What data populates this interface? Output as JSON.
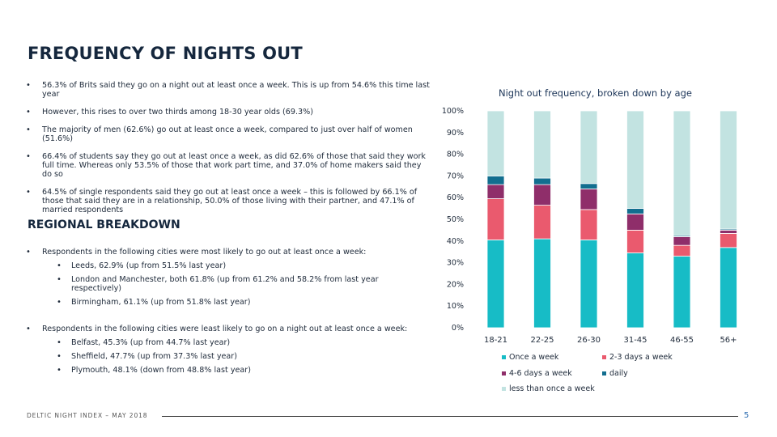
{
  "page": {
    "title": "FREQUENCY OF NIGHTS OUT",
    "bullets": [
      "56.3% of Brits said they go on a night out at least once a week. This is up from 54.6% this time last year",
      "However, this rises to over two thirds among 18-30 year olds (69.3%)",
      "The majority of men (62.6%) go out at least once a week, compared to just over half of women (51.6%)",
      "66.4% of students say they go out at least once a week, as did 62.6% of those that said they work full time. Whereas only 53.5% of those that work part time, and 37.0% of home makers said they do so",
      "64.5% of single respondents said they go out at least once a week – this is followed by 66.1% of those that said they are in a relationship, 50.0% of those living with their partner, and 47.1% of married respondents"
    ],
    "regional": {
      "heading": "REGIONAL BREAKDOWN",
      "most_intro": "Respondents in the following cities were most likely to go out at least once a week:",
      "most": [
        "Leeds, 62.9% (up from 51.5% last year)",
        "London and Manchester, both 61.8% (up from 61.2% and 58.2% from last year respectively)",
        "Birmingham, 61.1% (up from 51.8% last year)"
      ],
      "least_intro": "Respondents in the following cities were least likely to go on a night out at least once a week:",
      "least": [
        "Belfast, 45.3% (up from 44.7% last year)",
        "Sheffield, 47.7% (up from 37.3% last year)",
        "Plymouth, 48.1% (down from 48.8% last year)"
      ]
    },
    "footer": "DELTIC NIGHT INDEX – MAY 2018",
    "page_number": "5"
  },
  "chart_data": {
    "type": "bar",
    "stacked": true,
    "title": "Night out frequency, broken down by age",
    "categories": [
      "18-21",
      "22-25",
      "26-30",
      "31-45",
      "46-55",
      "56+"
    ],
    "y_ticks": [
      "0%",
      "10%",
      "20%",
      "30%",
      "40%",
      "50%",
      "60%",
      "70%",
      "80%",
      "90%",
      "100%"
    ],
    "ylim": [
      0,
      100
    ],
    "series": [
      {
        "name": "Once a week",
        "color": "#17bcc6",
        "values": [
          40.5,
          41,
          40.5,
          34.5,
          33,
          37
        ]
      },
      {
        "name": "2-3 days a week",
        "color": "#ea5a6e",
        "values": [
          19,
          15.5,
          14,
          10.5,
          5,
          6.5
        ]
      },
      {
        "name": "4-6 days a week",
        "color": "#8f2e6a",
        "values": [
          6.5,
          9.5,
          9.5,
          7.5,
          4,
          1.5
        ]
      },
      {
        "name": "daily",
        "color": "#126e8f",
        "values": [
          4,
          3,
          2.5,
          2.5,
          0.5,
          0.5
        ]
      },
      {
        "name": "less than once a week",
        "color": "#c2e3e1",
        "values": [
          30,
          31,
          33.5,
          45,
          57.5,
          54.5
        ]
      }
    ],
    "legend_position": "bottom"
  }
}
